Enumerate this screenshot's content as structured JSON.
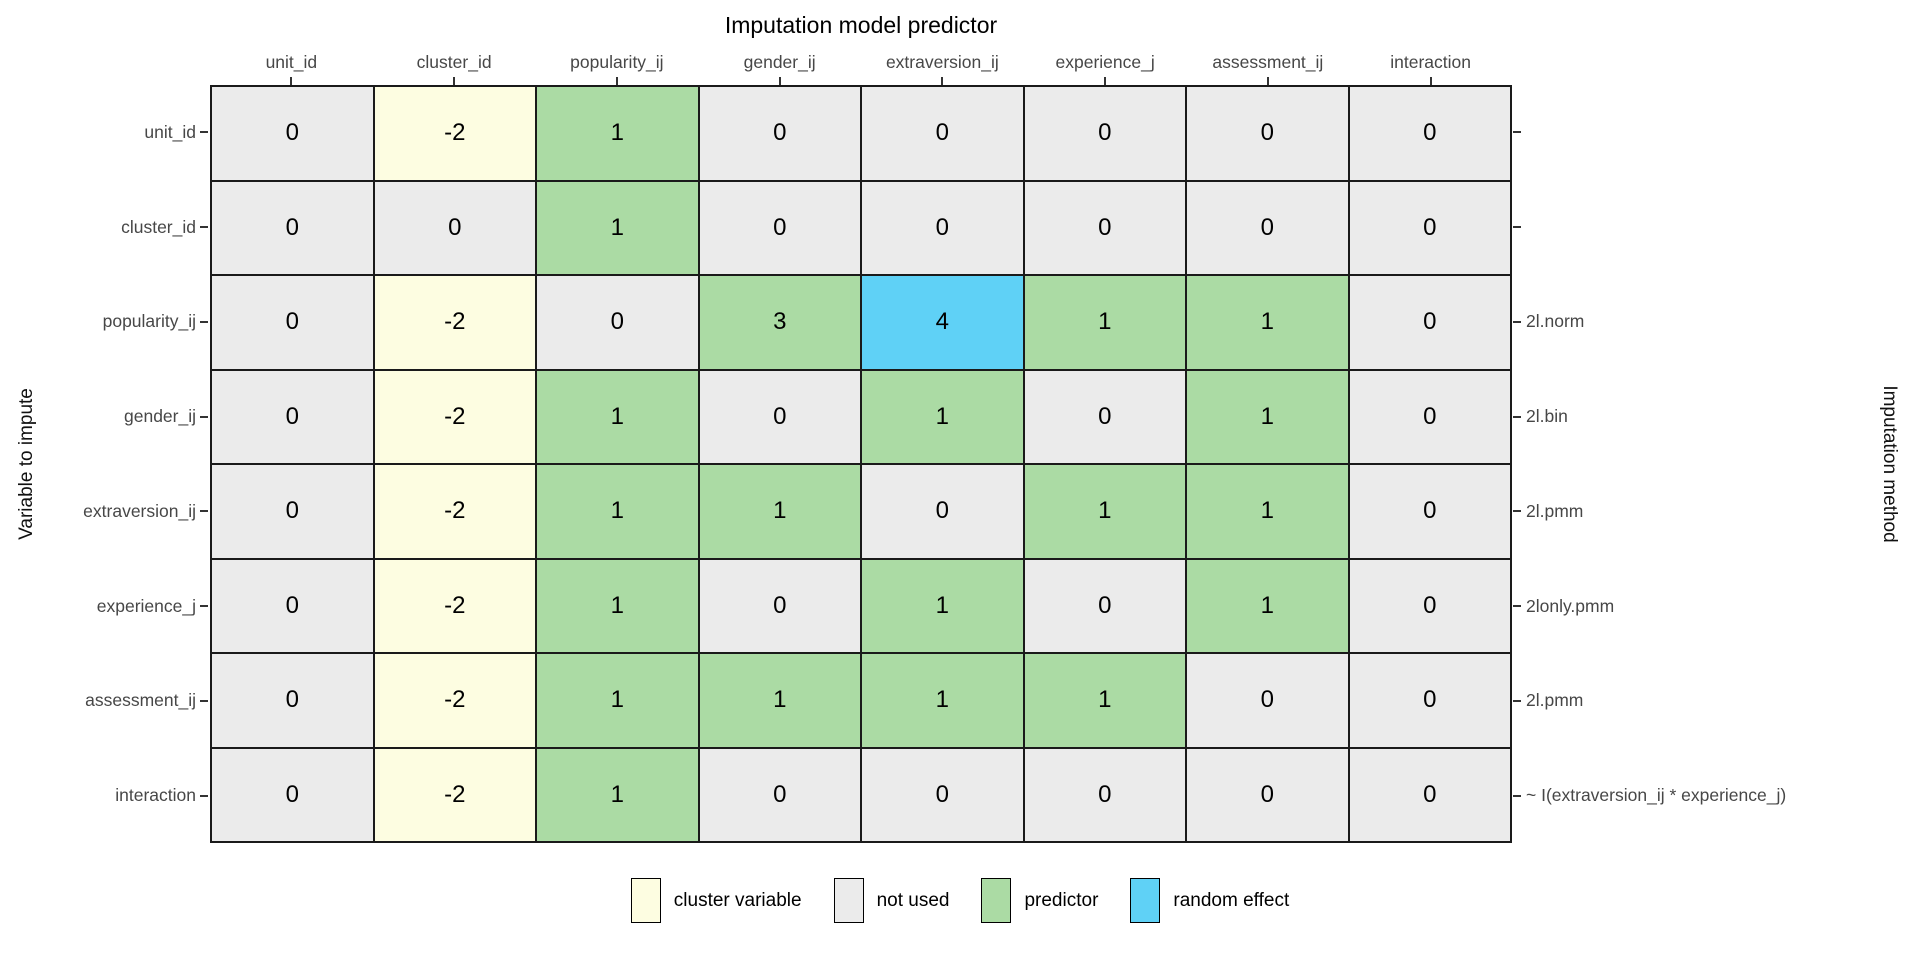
{
  "chart_data": {
    "type": "heatmap",
    "title": "Imputation model predictor",
    "ylabel": "Variable to impute",
    "right_label": "Imputation method",
    "categories_x": [
      "unit_id",
      "cluster_id",
      "popularity_ij",
      "gender_ij",
      "extraversion_ij",
      "experience_j",
      "assessment_ij",
      "interaction"
    ],
    "categories_y": [
      "unit_id",
      "cluster_id",
      "popularity_ij",
      "gender_ij",
      "extraversion_ij",
      "experience_j",
      "assessment_ij",
      "interaction"
    ],
    "right_tick_labels": [
      "",
      "",
      "2l.norm",
      "2l.bin",
      "2l.pmm",
      "2lonly.pmm",
      "2l.pmm",
      "~ I(extraversion_ij * experience_j)"
    ],
    "values": [
      [
        0,
        -2,
        1,
        0,
        0,
        0,
        0,
        0
      ],
      [
        0,
        0,
        1,
        0,
        0,
        0,
        0,
        0
      ],
      [
        0,
        -2,
        0,
        3,
        4,
        1,
        1,
        0
      ],
      [
        0,
        -2,
        1,
        0,
        1,
        0,
        1,
        0
      ],
      [
        0,
        -2,
        1,
        1,
        0,
        1,
        1,
        0
      ],
      [
        0,
        -2,
        1,
        0,
        1,
        0,
        1,
        0
      ],
      [
        0,
        -2,
        1,
        1,
        1,
        1,
        0,
        0
      ],
      [
        0,
        -2,
        1,
        0,
        0,
        0,
        0,
        0
      ]
    ],
    "cell_types": [
      [
        "not_used",
        "cluster",
        "predictor",
        "not_used",
        "not_used",
        "not_used",
        "not_used",
        "not_used"
      ],
      [
        "not_used",
        "not_used",
        "predictor",
        "not_used",
        "not_used",
        "not_used",
        "not_used",
        "not_used"
      ],
      [
        "not_used",
        "cluster",
        "not_used",
        "predictor",
        "random",
        "predictor",
        "predictor",
        "not_used"
      ],
      [
        "not_used",
        "cluster",
        "predictor",
        "not_used",
        "predictor",
        "not_used",
        "predictor",
        "not_used"
      ],
      [
        "not_used",
        "cluster",
        "predictor",
        "predictor",
        "not_used",
        "predictor",
        "predictor",
        "not_used"
      ],
      [
        "not_used",
        "cluster",
        "predictor",
        "not_used",
        "predictor",
        "not_used",
        "predictor",
        "not_used"
      ],
      [
        "not_used",
        "cluster",
        "predictor",
        "predictor",
        "predictor",
        "predictor",
        "not_used",
        "not_used"
      ],
      [
        "not_used",
        "cluster",
        "predictor",
        "not_used",
        "not_used",
        "not_used",
        "not_used",
        "not_used"
      ]
    ],
    "colors": {
      "cluster": "#FDFDE1",
      "not_used": "#EBEBEB",
      "predictor": "#ABDBA4",
      "random": "#5FD1F6",
      "cell_border": "#1a1a1a",
      "tick": "#333333",
      "tick_text": "#474747"
    },
    "legend": [
      {
        "label": "cluster variable",
        "type": "cluster",
        "color": "#FDFDE1"
      },
      {
        "label": "not used",
        "type": "not_used",
        "color": "#EBEBEB"
      },
      {
        "label": "predictor",
        "type": "predictor",
        "color": "#ABDBA4"
      },
      {
        "label": "random effect",
        "type": "random",
        "color": "#5FD1F6"
      }
    ],
    "legend_position": "bottom",
    "grid": "off"
  }
}
